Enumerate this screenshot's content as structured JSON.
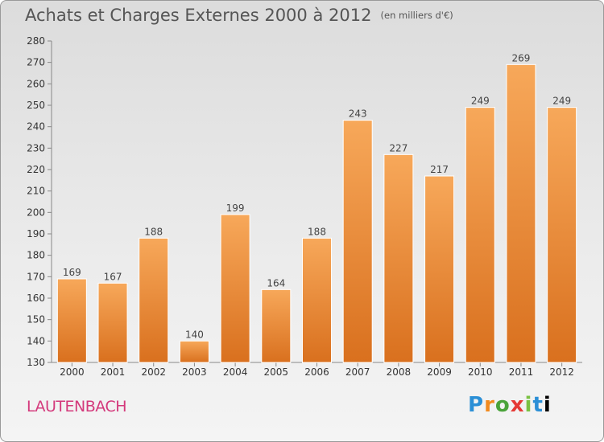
{
  "title": "Achats et Charges Externes 2000 à 2012",
  "unit": "(en milliers d'€)",
  "commune": "LAUTENBACH",
  "logo": [
    "P",
    "r",
    "o",
    "x",
    "i",
    "t",
    "i"
  ],
  "colors": {
    "bar_top": "#f7a85a",
    "bar_bottom": "#d9701e",
    "text": "#555555",
    "brand_pink": "#d43a7c"
  },
  "chart_data": {
    "type": "bar",
    "categories": [
      "2000",
      "2001",
      "2002",
      "2003",
      "2004",
      "2005",
      "2006",
      "2007",
      "2008",
      "2009",
      "2010",
      "2011",
      "2012"
    ],
    "values": [
      169,
      167,
      188,
      140,
      199,
      164,
      188,
      243,
      227,
      217,
      249,
      269,
      249
    ],
    "ylim": [
      130,
      280
    ],
    "yticks": [
      130,
      140,
      150,
      160,
      170,
      180,
      190,
      200,
      210,
      220,
      230,
      240,
      250,
      260,
      270,
      280
    ],
    "grid": false,
    "xlabel": "",
    "ylabel": ""
  }
}
